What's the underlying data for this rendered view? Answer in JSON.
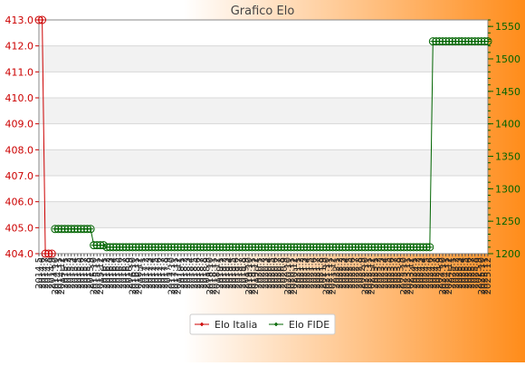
{
  "chart_data": {
    "type": "line",
    "title": "Grafico Elo",
    "colors": {
      "background_left": "#ffffff",
      "background_right": "#ff8c1a",
      "plot_bg": "#ffffff",
      "band": "#f2f2f2",
      "grid": "#d8d8d8",
      "left_axis": "#cc0000",
      "right_axis": "#006400",
      "elo_italia": "#cc0000",
      "elo_fide": "#006400"
    },
    "left_axis": {
      "ylim": [
        404.0,
        413.0
      ],
      "ticks": [
        "404.0",
        "405.0",
        "406.0",
        "407.0",
        "408.0",
        "409.0",
        "410.0",
        "411.0",
        "412.0",
        "413.0"
      ]
    },
    "right_axis": {
      "ylim": [
        1200,
        1560
      ],
      "ticks": [
        "1200",
        "1250",
        "1300",
        "1350",
        "1400",
        "1450",
        "1500",
        "1550"
      ]
    },
    "x_tick_labels": [
      "2014.5",
      "2014.6",
      "2014.7",
      "2014.8",
      "2014.9",
      "2014.10",
      "2014.11",
      "2014.12",
      "2015.1",
      "2015.2",
      "2015.3",
      "2015.4",
      "2015.5",
      "2015.6",
      "2015.7",
      "2015.8",
      "2015.9",
      "2015.10",
      "2015.11",
      "2015.12",
      "2016.1",
      "2016.2",
      "2016.3",
      "2016.4",
      "2016.5",
      "2016.6",
      "2016.7",
      "2016.8",
      "2016.9",
      "2016.10",
      "2016.11",
      "2016.12",
      "2017.1",
      "2017.2",
      "2017.3",
      "2017.4",
      "2017.5",
      "2017.6",
      "2017.7",
      "2017.8",
      "2017.9",
      "2017.10",
      "2017.11",
      "2017.12",
      "2018.1",
      "2018.2",
      "2018.3",
      "2018.4",
      "2018.5",
      "2018.6",
      "2018.7",
      "2018.8",
      "2018.9",
      "2018.10",
      "2018.11",
      "2018.12",
      "2019.1",
      "2019.2",
      "2019.3",
      "2019.4",
      "2019.5",
      "2019.6",
      "2019.7",
      "2019.8",
      "2019.9",
      "2019.10",
      "2019.11",
      "2019.12",
      "2020.1",
      "2020.2",
      "2020.3",
      "2020.4",
      "2020.5",
      "2020.6",
      "2020.7",
      "2020.8",
      "2020.9",
      "2020.10",
      "2020.11",
      "2020.12",
      "2021.1",
      "2021.2",
      "2021.3",
      "2021.4",
      "2021.5",
      "2021.6",
      "2021.7",
      "2021.8",
      "2021.9",
      "2021.10",
      "2021.11",
      "2021.12",
      "2022.1",
      "2022.2",
      "2022.3",
      "2022.4",
      "2022.5",
      "2022.6",
      "2022.7",
      "2022.8",
      "2022.9",
      "2022.10",
      "2022.11",
      "2022.12",
      "2023.1",
      "2023.2",
      "2023.3",
      "2023.4",
      "2023.5",
      "2023.6",
      "2023.7",
      "2023.8",
      "2023.9",
      "2023.10",
      "2023.11",
      "2023.12",
      "2024.1",
      "2024.2",
      "2024.3",
      "2024.4",
      "2024.5",
      "2024.6",
      "2024.7",
      "2024.8",
      "2024.9",
      "2024.10",
      "2024.11",
      "2024.12",
      "2025.1",
      "2025.2",
      "2025.3",
      "2025.4",
      "2025.5",
      "2025.6",
      "2025.7",
      "2025.8",
      "2025.9",
      "2025.10",
      "2025.11",
      "2025.12"
    ],
    "series": [
      {
        "name": "Elo Italia",
        "axis": "left",
        "color": "#cc0000",
        "points": [
          {
            "x": "2014.5",
            "y": 413.0
          },
          {
            "x": "2014.6",
            "y": 413.0
          },
          {
            "x": "2014.7",
            "y": 404.0
          },
          {
            "x": "2014.8",
            "y": 404.0
          },
          {
            "x": "2014.9",
            "y": 404.0
          }
        ]
      },
      {
        "name": "Elo FIDE",
        "axis": "right",
        "color": "#006400",
        "segments": [
          {
            "from": "2014.10",
            "to": "2015.9",
            "y": 1238
          },
          {
            "from": "2015.10",
            "to": "2016.1",
            "y": 1213
          },
          {
            "from": "2016.2",
            "to": "2024.6",
            "y": 1210
          },
          {
            "from": "2024.7",
            "to": "2025.12",
            "y": 1527
          }
        ]
      }
    ],
    "legend": {
      "position": "bottom-center",
      "entries": [
        "Elo Italia",
        "Elo FIDE"
      ]
    }
  }
}
